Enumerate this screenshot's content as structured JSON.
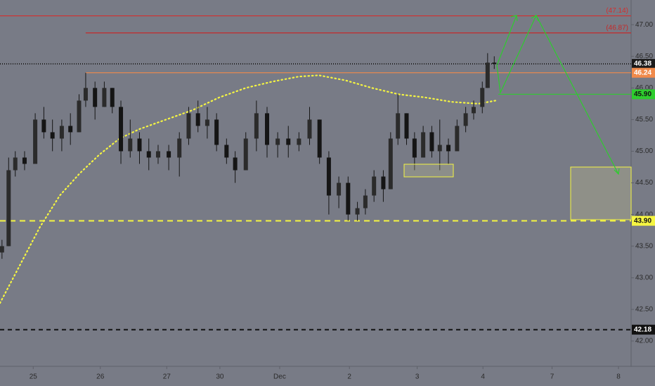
{
  "chart_data": {
    "type": "candlestick",
    "candles": {
      "color": "#151515",
      "x": [
        0.03,
        0.13,
        0.23,
        0.37,
        0.53,
        0.66,
        0.79,
        0.93,
        1.06,
        1.19,
        1.29,
        1.43,
        1.57,
        1.69,
        1.82,
        1.96,
        2.1,
        2.24,
        2.38,
        2.54,
        2.7,
        2.84,
        2.98,
        3.12,
        3.26,
        3.41,
        3.54,
        3.7,
        3.86,
        4.02,
        4.18,
        4.34,
        4.5,
        4.66,
        4.81,
        4.95,
        5.1,
        5.24,
        5.38,
        5.5,
        5.63,
        5.77,
        5.88,
        5.99,
        6.12,
        6.24,
        6.37,
        6.5,
        6.62,
        6.75,
        6.88,
        7.01,
        7.13,
        7.26,
        7.34,
        7.44
      ],
      "open": [
        43.4,
        43.5,
        44.7,
        44.9,
        44.8,
        45.5,
        45.3,
        45.2,
        45.4,
        45.3,
        45.8,
        46.0,
        45.7,
        46.0,
        45.7,
        45.0,
        45.2,
        45.0,
        44.9,
        45.0,
        44.9,
        45.2,
        45.6,
        45.4,
        45.5,
        45.1,
        44.9,
        44.7,
        45.2,
        45.6,
        45.1,
        45.2,
        45.1,
        45.2,
        45.5,
        44.9,
        44.3,
        44.5,
        44.0,
        44.1,
        44.3,
        44.6,
        44.4,
        45.2,
        45.6,
        45.2,
        44.9,
        45.3,
        45.0,
        45.1,
        45.0,
        45.4,
        45.6,
        45.7,
        46.0,
        46.4
      ],
      "high": [
        43.6,
        44.9,
        45.0,
        45.0,
        45.6,
        45.7,
        45.5,
        45.5,
        45.6,
        45.9,
        46.24,
        46.1,
        46.1,
        46.0,
        45.8,
        45.5,
        45.3,
        45.2,
        45.1,
        45.1,
        45.3,
        45.7,
        45.8,
        45.7,
        45.6,
        45.2,
        45.0,
        45.3,
        45.8,
        45.7,
        45.3,
        45.4,
        45.3,
        45.7,
        45.5,
        45.0,
        44.6,
        44.6,
        44.2,
        44.4,
        44.7,
        44.7,
        45.3,
        45.9,
        45.6,
        45.3,
        45.4,
        45.4,
        45.5,
        45.2,
        45.5,
        45.7,
        45.8,
        46.1,
        46.55,
        46.5
      ],
      "low": [
        43.3,
        43.5,
        44.6,
        44.7,
        44.8,
        45.2,
        45.0,
        45.0,
        45.1,
        45.3,
        45.7,
        45.5,
        45.7,
        45.6,
        44.8,
        44.9,
        44.8,
        44.7,
        44.8,
        44.7,
        44.6,
        45.1,
        45.3,
        45.2,
        45.0,
        44.8,
        44.5,
        44.7,
        45.0,
        44.9,
        44.9,
        44.9,
        45.0,
        45.1,
        44.8,
        44.0,
        44.1,
        43.9,
        43.9,
        44.0,
        44.2,
        44.2,
        44.4,
        45.1,
        45.1,
        44.7,
        44.9,
        44.9,
        44.7,
        44.8,
        45.0,
        45.3,
        45.5,
        45.6,
        46.0,
        46.3
      ],
      "close": [
        43.5,
        44.7,
        44.9,
        44.8,
        45.5,
        45.3,
        45.2,
        45.4,
        45.3,
        45.8,
        46.0,
        45.7,
        46.0,
        45.7,
        45.0,
        45.2,
        45.0,
        44.9,
        45.0,
        44.9,
        45.2,
        45.6,
        45.4,
        45.5,
        45.1,
        44.9,
        44.7,
        45.2,
        45.6,
        45.1,
        45.2,
        45.1,
        45.2,
        45.5,
        44.9,
        44.3,
        44.5,
        44.0,
        44.1,
        44.3,
        44.6,
        44.4,
        45.2,
        45.6,
        45.2,
        44.9,
        45.3,
        45.0,
        45.1,
        45.0,
        45.4,
        45.6,
        45.7,
        46.0,
        46.4,
        46.38
      ]
    },
    "moving_average": {
      "color": "#f5f542",
      "x": [
        0.0,
        0.3,
        0.6,
        0.9,
        1.2,
        1.5,
        1.8,
        2.1,
        2.5,
        2.9,
        3.3,
        3.7,
        4.1,
        4.5,
        4.8,
        5.2,
        5.6,
        6.0,
        6.4,
        6.8,
        7.2,
        7.46
      ],
      "values": [
        42.6,
        43.2,
        43.8,
        44.3,
        44.65,
        44.95,
        45.2,
        45.35,
        45.5,
        45.65,
        45.85,
        46.0,
        46.1,
        46.18,
        46.2,
        46.12,
        46.0,
        45.9,
        45.85,
        45.78,
        45.75,
        45.8
      ]
    },
    "levels": [
      {
        "value": 47.14,
        "color": "#d32f2f",
        "x_start": 0,
        "note": "(47.14)"
      },
      {
        "value": 46.87,
        "color": "#c62828",
        "x_start": 1.29,
        "note": "(46.87)"
      },
      {
        "value": 46.38,
        "label": "46.38",
        "color": "#222222",
        "dash": "1 2",
        "x_start": 0,
        "badge": "#1a1a1a",
        "text_color": "#ffffff"
      },
      {
        "value": 46.24,
        "label": "46.24",
        "color": "#f08a4b",
        "x_start": 1.29,
        "badge": "#f08a4b",
        "text_color": "#ffffff"
      },
      {
        "value": 45.9,
        "label": "45.90",
        "color": "#2ecc2e",
        "x_start": 7.5,
        "badge": "#2ecc2e",
        "text_color": "#111111"
      },
      {
        "value": 43.9,
        "label": "43.90",
        "color": "#f5f542",
        "dash": "8 6",
        "x_start": 0,
        "badge": "#f5f542",
        "text_color": "#111111"
      },
      {
        "value": 42.18,
        "label": "42.18",
        "color": "#111111",
        "dash": "6 5",
        "x_start": 0,
        "badge": "#111111",
        "text_color": "#ffffff"
      }
    ],
    "xlim": [
      0,
      9.5
    ],
    "ylim": [
      41.6,
      47.39
    ],
    "xticks": [
      {
        "value": 0.5,
        "label": "25"
      },
      {
        "value": 1.51,
        "label": "26"
      },
      {
        "value": 2.51,
        "label": "27"
      },
      {
        "value": 3.31,
        "label": "30"
      },
      {
        "value": 4.21,
        "label": "Dec"
      },
      {
        "value": 5.26,
        "label": "2"
      },
      {
        "value": 6.28,
        "label": "3"
      },
      {
        "value": 7.27,
        "label": "4"
      },
      {
        "value": 8.31,
        "label": "7"
      },
      {
        "value": 9.31,
        "label": "8"
      }
    ],
    "yticks": [
      {
        "value": 42,
        "label": "42.00"
      },
      {
        "value": 42.5,
        "label": "42.50"
      },
      {
        "value": 43,
        "label": "43.00"
      },
      {
        "value": 43.5,
        "label": "43.50"
      },
      {
        "value": 44,
        "label": "44.00"
      },
      {
        "value": 44.5,
        "label": "44.50"
      },
      {
        "value": 45,
        "label": "45.00"
      },
      {
        "value": 45.5,
        "label": "45.50"
      },
      {
        "value": 46,
        "label": "46.00"
      },
      {
        "value": 46.5,
        "label": "46.50"
      },
      {
        "value": 47,
        "label": "47.00"
      }
    ]
  }
}
